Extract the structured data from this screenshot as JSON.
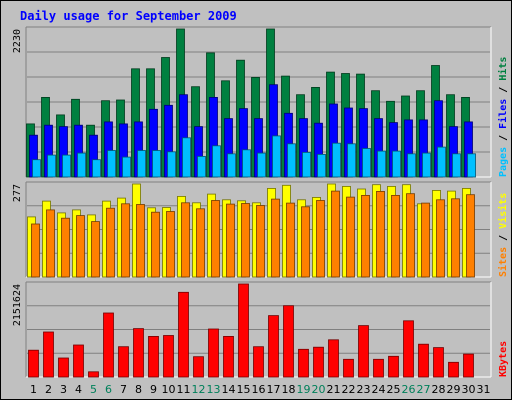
{
  "chart_data": {
    "type": "bar",
    "title": "Daily usage for September 2009",
    "days": [
      1,
      2,
      3,
      4,
      5,
      6,
      7,
      8,
      9,
      10,
      11,
      12,
      13,
      14,
      15,
      16,
      17,
      18,
      19,
      20,
      21,
      22,
      23,
      24,
      25,
      26,
      27,
      28,
      29,
      30,
      31
    ],
    "weekend_days": [
      5,
      6,
      12,
      13,
      19,
      20,
      26,
      27
    ],
    "panels": [
      {
        "id": "hits-files-pages",
        "max_label": "2230",
        "ymax": 2230,
        "legend": [
          "Pages",
          "/",
          "Files",
          "/",
          "Hits"
        ],
        "series": [
          {
            "name": "Hits",
            "color": "#008040",
            "values": [
              800,
              1200,
              935,
              1170,
              780,
              1150,
              1160,
              1630,
              1630,
              1800,
              2230,
              1360,
              1870,
              1450,
              1760,
              1500,
              2230,
              1520,
              1240,
              1350,
              1580,
              1560,
              1550,
              1300,
              1140,
              1220,
              1300,
              1680,
              1240,
              1200,
              0
            ]
          },
          {
            "name": "Files",
            "color": "#0000ff",
            "values": [
              630,
              780,
              760,
              780,
              630,
              830,
              800,
              830,
              1020,
              1080,
              1240,
              760,
              1200,
              880,
              1030,
              880,
              1390,
              960,
              880,
              810,
              1100,
              1040,
              1030,
              880,
              820,
              860,
              860,
              1150,
              760,
              830,
              0
            ]
          },
          {
            "name": "Pages",
            "color": "#00c0ff",
            "values": [
              260,
              330,
              330,
              360,
              260,
              400,
              300,
              400,
              400,
              380,
              590,
              310,
              470,
              350,
              410,
              360,
              620,
              500,
              370,
              340,
              510,
              500,
              430,
              390,
              390,
              350,
              360,
              450,
              350,
              350,
              0
            ]
          }
        ]
      },
      {
        "id": "visits-sites",
        "max_label": "277",
        "ymax": 277,
        "legend": [
          "Sites",
          "/",
          "Visits"
        ],
        "series": [
          {
            "name": "Visits",
            "color": "#ffff00",
            "values": [
              179,
              226,
              191,
              200,
              185,
              226,
              235,
              277,
              206,
              207,
              240,
              221,
              247,
              230,
              227,
              221,
              264,
              273,
              230,
              237,
              277,
              270,
              262,
              275,
              270,
              275,
              218,
              258,
              256,
              264,
              0
            ]
          },
          {
            "name": "Sites",
            "color": "#ff8000",
            "values": [
              158,
              200,
              175,
              183,
              165,
              205,
              218,
              216,
              193,
              195,
              221,
              203,
              228,
              217,
              219,
              213,
              232,
              220,
              209,
              228,
              256,
              238,
              243,
              255,
              243,
              248,
              220,
              230,
              233,
              245,
              0
            ]
          }
        ]
      },
      {
        "id": "kbytes",
        "max_label": "2151624",
        "ymax": 2151624,
        "legend": [
          "KBytes"
        ],
        "series": [
          {
            "name": "KBytes",
            "color": "#ff0000",
            "values": [
              620000,
              1040000,
              440000,
              740000,
              120000,
              1480000,
              700000,
              1120000,
              940000,
              960000,
              1960000,
              470000,
              1110000,
              940000,
              2151624,
              700000,
              1420000,
              1650000,
              640000,
              690000,
              860000,
              410000,
              1190000,
              410000,
              480000,
              1300000,
              760000,
              680000,
              340000,
              530000,
              0
            ]
          }
        ]
      }
    ]
  }
}
